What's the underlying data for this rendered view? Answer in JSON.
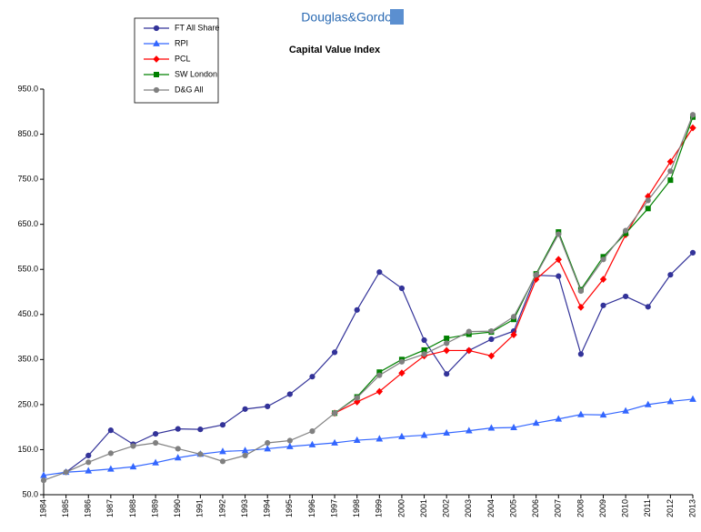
{
  "chart_data": {
    "type": "line",
    "brand": "Douglas&Gordon",
    "title": "Capital Value Index",
    "categories": [
      "1984",
      "1985",
      "1986",
      "1987",
      "1988",
      "1989",
      "1990",
      "1991",
      "1992",
      "1993",
      "1994",
      "1995",
      "1996",
      "1997",
      "1998",
      "1999",
      "2000",
      "2001",
      "2002",
      "2003",
      "2004",
      "2005",
      "2006",
      "2007",
      "2008",
      "2009",
      "2010",
      "2011",
      "2012",
      "2013"
    ],
    "ylim": [
      50,
      950
    ],
    "yticks": [
      {
        "value": 50,
        "label": "50.0"
      },
      {
        "value": 150,
        "label": "150.0"
      },
      {
        "value": 250,
        "label": "250.0"
      },
      {
        "value": 350,
        "label": "350.0"
      },
      {
        "value": 450,
        "label": "450.0"
      },
      {
        "value": 550,
        "label": "550.0"
      },
      {
        "value": 650,
        "label": "650.0"
      },
      {
        "value": 750,
        "label": "750.0"
      },
      {
        "value": 850,
        "label": "850.0"
      },
      {
        "value": 950,
        "label": "950.0"
      }
    ],
    "grid": false,
    "legend": "top-left",
    "series": [
      {
        "name": "FT All Share",
        "color": "#333399",
        "marker": "circle",
        "values": [
          null,
          100,
          137,
          193,
          162,
          185,
          196,
          195,
          205,
          240,
          246,
          273,
          312,
          366,
          460,
          544,
          508,
          393,
          318,
          370,
          395,
          413,
          537,
          535,
          362,
          470,
          490,
          467,
          538,
          587
        ]
      },
      {
        "name": "RPI",
        "color": "#3366ff",
        "marker": "triangle",
        "values": [
          93,
          100,
          103,
          107,
          112,
          121,
          132,
          140,
          146,
          148,
          152,
          157,
          161,
          165,
          171,
          174,
          179,
          182,
          187,
          192,
          198,
          199,
          209,
          218,
          228,
          227,
          236,
          250,
          257,
          262
        ]
      },
      {
        "name": "PCL",
        "color": "#ff0000",
        "marker": "diamond",
        "values": [
          null,
          null,
          null,
          null,
          null,
          null,
          null,
          null,
          null,
          null,
          null,
          null,
          null,
          231,
          256,
          279,
          320,
          358,
          370,
          370,
          358,
          405,
          528,
          572,
          466,
          528,
          627,
          712,
          789,
          864
        ]
      },
      {
        "name": "SW London",
        "color": "#008000",
        "marker": "square",
        "values": [
          null,
          null,
          null,
          null,
          null,
          null,
          null,
          null,
          null,
          null,
          null,
          null,
          null,
          231,
          267,
          322,
          350,
          371,
          397,
          406,
          411,
          439,
          540,
          633,
          505,
          578,
          630,
          685,
          748,
          888
        ]
      },
      {
        "name": "D&G All",
        "color": "#808080",
        "marker": "circle",
        "values": [
          82,
          100,
          122,
          142,
          158,
          165,
          152,
          140,
          124,
          137,
          165,
          170,
          191,
          231,
          265,
          315,
          345,
          362,
          386,
          412,
          413,
          445,
          538,
          628,
          502,
          572,
          636,
          703,
          768,
          893
        ]
      }
    ]
  }
}
